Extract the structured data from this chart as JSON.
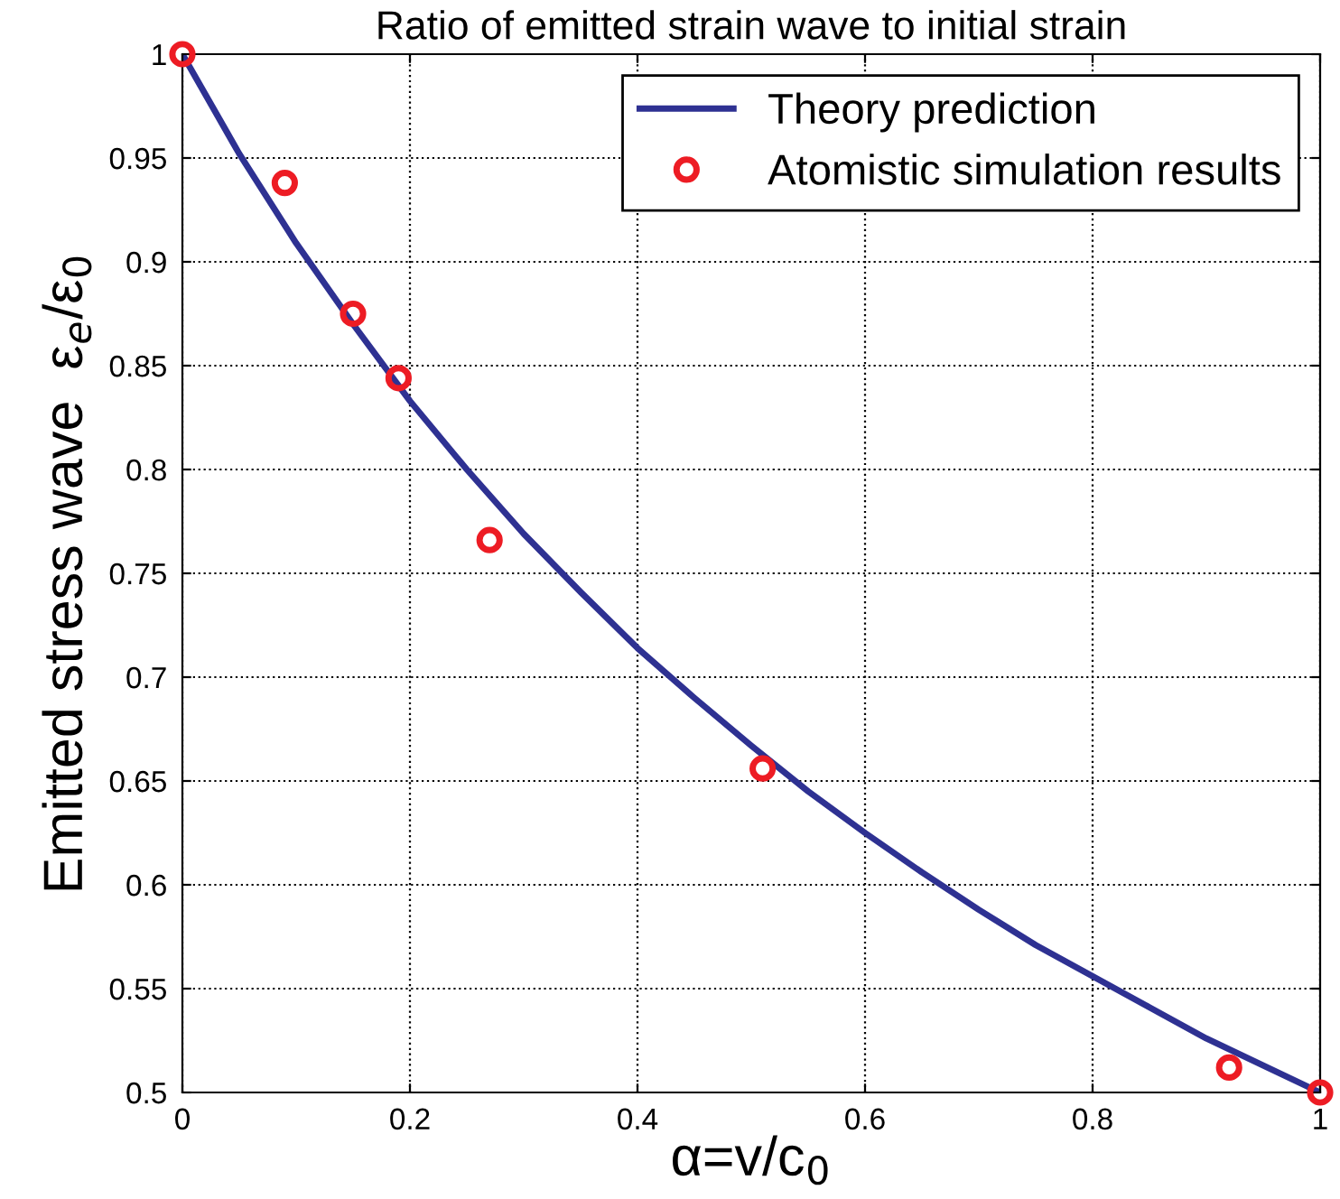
{
  "chart_data": {
    "type": "line",
    "title": "Ratio of emitted strain wave to initial strain",
    "xlabel": "α=v/c$_{0}$",
    "ylabel": "Emitted stress wave  ε$_{e}$/ε$_{0}$",
    "series": [
      {
        "name": "Theory prediction",
        "color": "#2e3192",
        "marker": "none",
        "x": [
          0,
          0.05,
          0.1,
          0.15,
          0.2,
          0.25,
          0.3,
          0.35,
          0.4,
          0.45,
          0.5,
          0.55,
          0.6,
          0.65,
          0.7,
          0.75,
          0.8,
          0.85,
          0.9,
          0.95,
          1.0
        ],
        "values": [
          1.0,
          0.952,
          0.909,
          0.87,
          0.833,
          0.8,
          0.769,
          0.741,
          0.714,
          0.69,
          0.667,
          0.645,
          0.625,
          0.606,
          0.588,
          0.571,
          0.556,
          0.541,
          0.526,
          0.513,
          0.5
        ]
      },
      {
        "name": "Atomistic simulation results",
        "type": "scatter",
        "color": "#ed1c24",
        "marker": "circle",
        "x": [
          0,
          0.09,
          0.15,
          0.19,
          0.27,
          0.51,
          0.92,
          1.0
        ],
        "values": [
          1.0,
          0.938,
          0.875,
          0.844,
          0.766,
          0.656,
          0.512,
          0.5
        ]
      }
    ],
    "xlim": [
      0,
      1
    ],
    "xticks": [
      0,
      0.2,
      0.4,
      0.6,
      0.8,
      1
    ],
    "ylim": [
      0.5,
      1
    ],
    "yticks": [
      0.5,
      0.55,
      0.6,
      0.65,
      0.7,
      0.75,
      0.8,
      0.85,
      0.9,
      0.95,
      1
    ],
    "grid": true,
    "legend": "top right"
  }
}
